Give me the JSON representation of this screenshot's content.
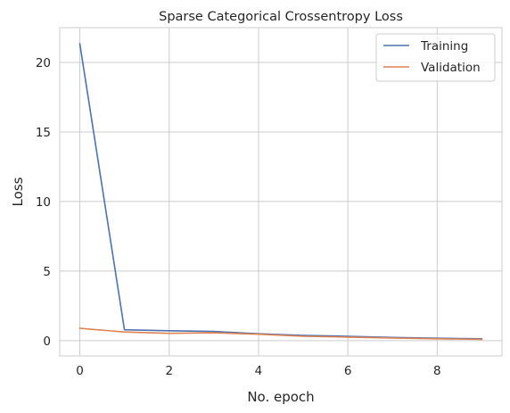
{
  "chart_data": {
    "type": "line",
    "title": "Sparse Categorical Crossentropy Loss",
    "xlabel": "No. epoch",
    "ylabel": "Loss",
    "xlim": [
      -0.45,
      9.45
    ],
    "ylim": [
      -1.1,
      22.5
    ],
    "x_ticks": [
      0,
      2,
      4,
      6,
      8
    ],
    "y_ticks": [
      0,
      5,
      10,
      15,
      20
    ],
    "grid": true,
    "legend_position": "top-right",
    "x": [
      0,
      1,
      2,
      3,
      4,
      5,
      6,
      7,
      8,
      9
    ],
    "series": [
      {
        "name": "Training",
        "color": "#4c72b0",
        "values": [
          21.35,
          0.78,
          0.71,
          0.66,
          0.49,
          0.37,
          0.31,
          0.23,
          0.17,
          0.13
        ]
      },
      {
        "name": "Validation",
        "color": "#dd8452",
        "values": [
          0.88,
          0.62,
          0.52,
          0.56,
          0.46,
          0.31,
          0.25,
          0.19,
          0.13,
          0.09
        ]
      }
    ]
  }
}
